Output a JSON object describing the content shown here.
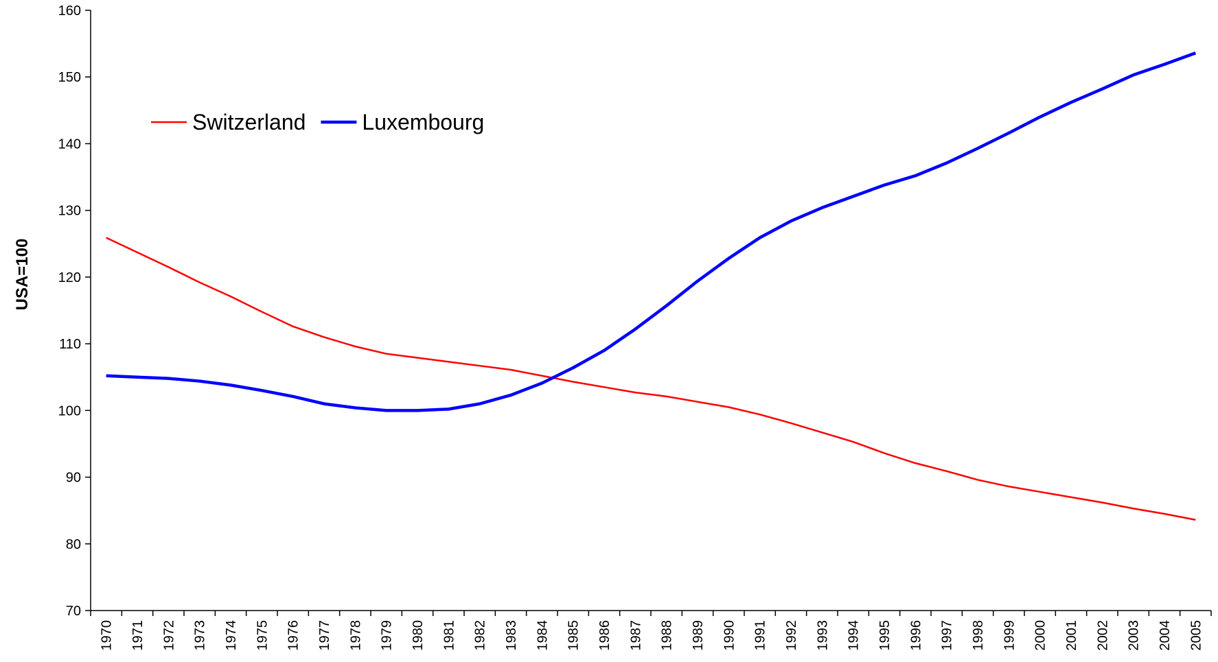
{
  "chart_data": {
    "type": "line",
    "y_label": "USA=100",
    "categories": [
      "1970",
      "1971",
      "1972",
      "1973",
      "1974",
      "1975",
      "1976",
      "1977",
      "1978",
      "1979",
      "1980",
      "1981",
      "1982",
      "1983",
      "1984",
      "1985",
      "1986",
      "1987",
      "1988",
      "1989",
      "1990",
      "1991",
      "1992",
      "1993",
      "1994",
      "1995",
      "1996",
      "1997",
      "1998",
      "1999",
      "2000",
      "2001",
      "2002",
      "2003",
      "2004",
      "2005"
    ],
    "series": [
      {
        "name": "Switzerland",
        "color": "#ff0000",
        "values": [
          125.9,
          123.7,
          121.5,
          119.2,
          117.1,
          114.8,
          112.6,
          111.0,
          109.6,
          108.5,
          107.9,
          107.3,
          106.7,
          106.1,
          105.2,
          104.3,
          103.5,
          102.7,
          102.1,
          101.3,
          100.5,
          99.4,
          98.1,
          96.7,
          95.3,
          93.6,
          92.1,
          90.9,
          89.6,
          88.6,
          87.8,
          87.0,
          86.2,
          85.3,
          84.5,
          83.6
        ]
      },
      {
        "name": "Luxembourg",
        "color": "#0000ff",
        "values": [
          105.2,
          105.0,
          104.8,
          104.4,
          103.8,
          103.0,
          102.1,
          101.0,
          100.4,
          100.0,
          100.0,
          100.2,
          101.0,
          102.3,
          104.1,
          106.4,
          109.0,
          112.2,
          115.7,
          119.4,
          122.8,
          125.9,
          128.4,
          130.4,
          132.1,
          133.8,
          135.2,
          137.1,
          139.3,
          141.6,
          144.0,
          146.2,
          148.2,
          150.3,
          151.9,
          153.6
        ]
      }
    ],
    "ylim": [
      70,
      160
    ],
    "yticks": [
      70,
      80,
      90,
      100,
      110,
      120,
      130,
      140,
      150,
      160
    ],
    "grid": false,
    "legend": "upper left"
  }
}
